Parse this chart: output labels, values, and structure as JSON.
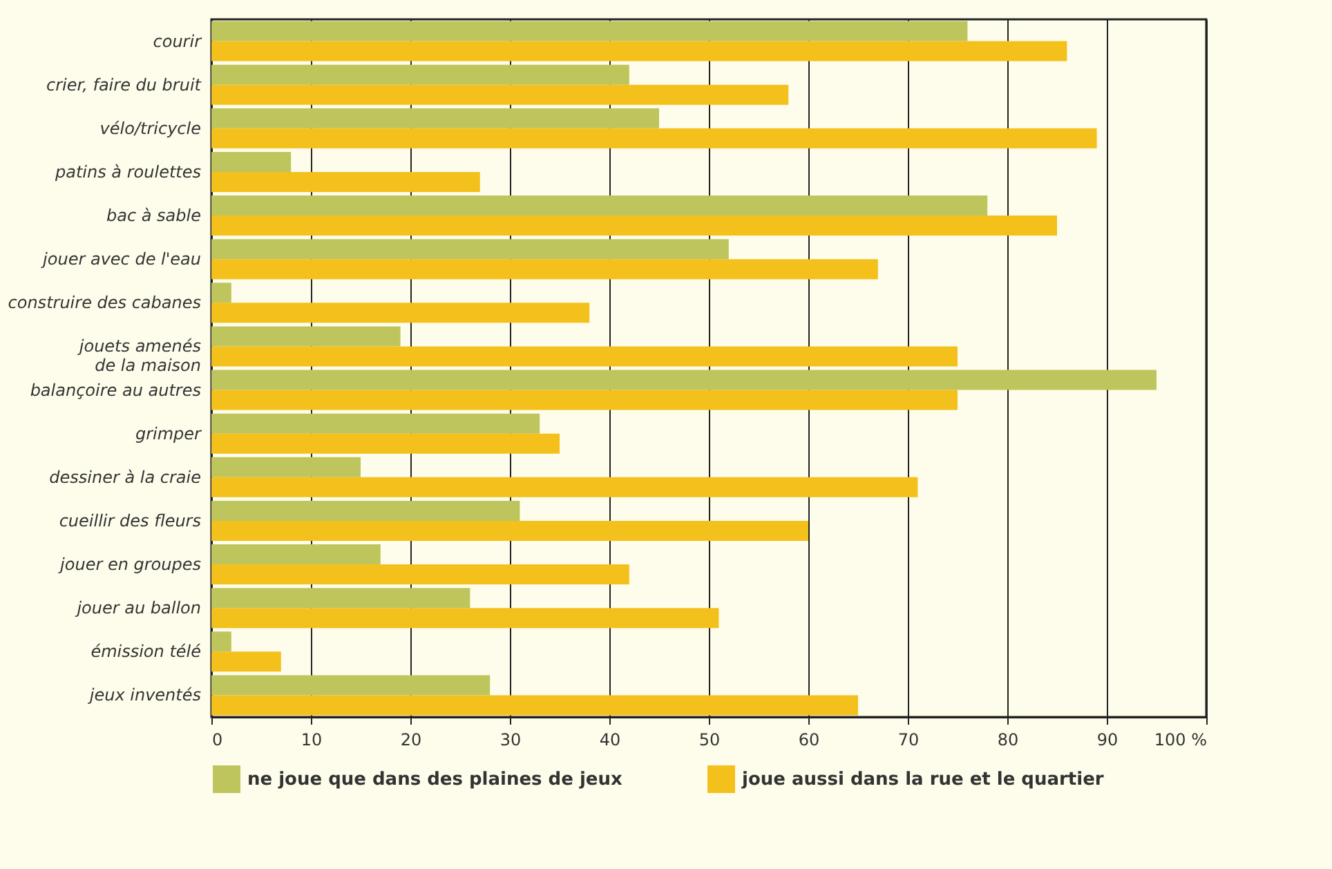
{
  "chart_data": {
    "type": "bar",
    "orientation": "horizontal",
    "categories": [
      "courir",
      "crier, faire du bruit",
      "vélo/tricycle",
      "patins à roulettes",
      "bac à sable",
      "jouer avec de l'eau",
      "construire des cabanes",
      "jouets amenés\nde la maison",
      "balançoire au autres",
      "grimper",
      "dessiner à la craie",
      "cueillir des fleurs",
      "jouer en groupes",
      "jouer au ballon",
      "émission télé",
      "jeux inventés"
    ],
    "series": [
      {
        "name": "ne joue que dans des plaines de jeux",
        "color": "#bec55c",
        "values": [
          76,
          42,
          45,
          8,
          78,
          52,
          2,
          19,
          95,
          33,
          15,
          31,
          17,
          26,
          2,
          28
        ]
      },
      {
        "name": "joue aussi dans la rue et le quartier",
        "color": "#f4c01c",
        "values": [
          86,
          58,
          89,
          27,
          85,
          67,
          38,
          75,
          75,
          35,
          71,
          60,
          42,
          51,
          7,
          65
        ]
      }
    ],
    "xlim": [
      0,
      100
    ],
    "xticks": [
      0,
      10,
      20,
      30,
      40,
      50,
      60,
      70,
      80,
      90,
      {
        "value": 100,
        "label": "100 %"
      }
    ],
    "grid": "x",
    "legend": "bottom"
  }
}
